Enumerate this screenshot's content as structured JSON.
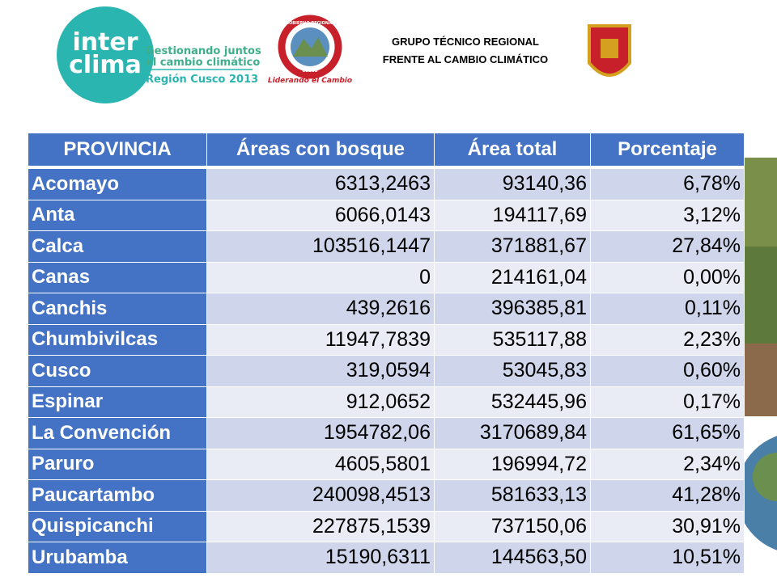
{
  "header": {
    "logo": {
      "line1": "inter",
      "line2": "clima",
      "tagline1": "Gestionando juntos",
      "tagline2": "el cambio climático",
      "region": "Región Cusco 2013"
    },
    "seal": {
      "ring_top": "GOBIERNO REGIONAL",
      "ring_bottom": "CUSCO",
      "motto": "Liderando el Cambio"
    },
    "title": {
      "line1": "GRUPO TÉCNICO REGIONAL",
      "line2": "FRENTE AL CAMBIO CLIMÁTICO"
    }
  },
  "table": {
    "columns": [
      "PROVINCIA",
      "Áreas con bosque",
      "Área total",
      "Porcentaje"
    ],
    "rows": [
      [
        "Acomayo",
        "6313,2463",
        "93140,36",
        "6,78%"
      ],
      [
        "Anta",
        "6066,0143",
        "194117,69",
        "3,12%"
      ],
      [
        "Calca",
        "103516,1447",
        "371881,67",
        "27,84%"
      ],
      [
        "Canas",
        "0",
        "214161,04",
        "0,00%"
      ],
      [
        "Canchis",
        "439,2616",
        "396385,81",
        "0,11%"
      ],
      [
        "Chumbivilcas",
        "11947,7839",
        "535117,88",
        "2,23%"
      ],
      [
        "Cusco",
        "319,0594",
        "53045,83",
        "0,60%"
      ],
      [
        "Espinar",
        "912,0652",
        "532445,96",
        "0,17%"
      ],
      [
        "La Convención",
        "1954782,06",
        "3170689,84",
        "61,65%"
      ],
      [
        "Paruro",
        "4605,5801",
        "196994,72",
        "2,34%"
      ],
      [
        "Paucartambo",
        "240098,4513",
        "581633,13",
        "41,28%"
      ],
      [
        "Quispicanchi",
        "227875,1539",
        "737150,06",
        "30,91%"
      ],
      [
        "Urubamba",
        "15190,6311",
        "144563,50",
        "10,51%"
      ]
    ]
  }
}
